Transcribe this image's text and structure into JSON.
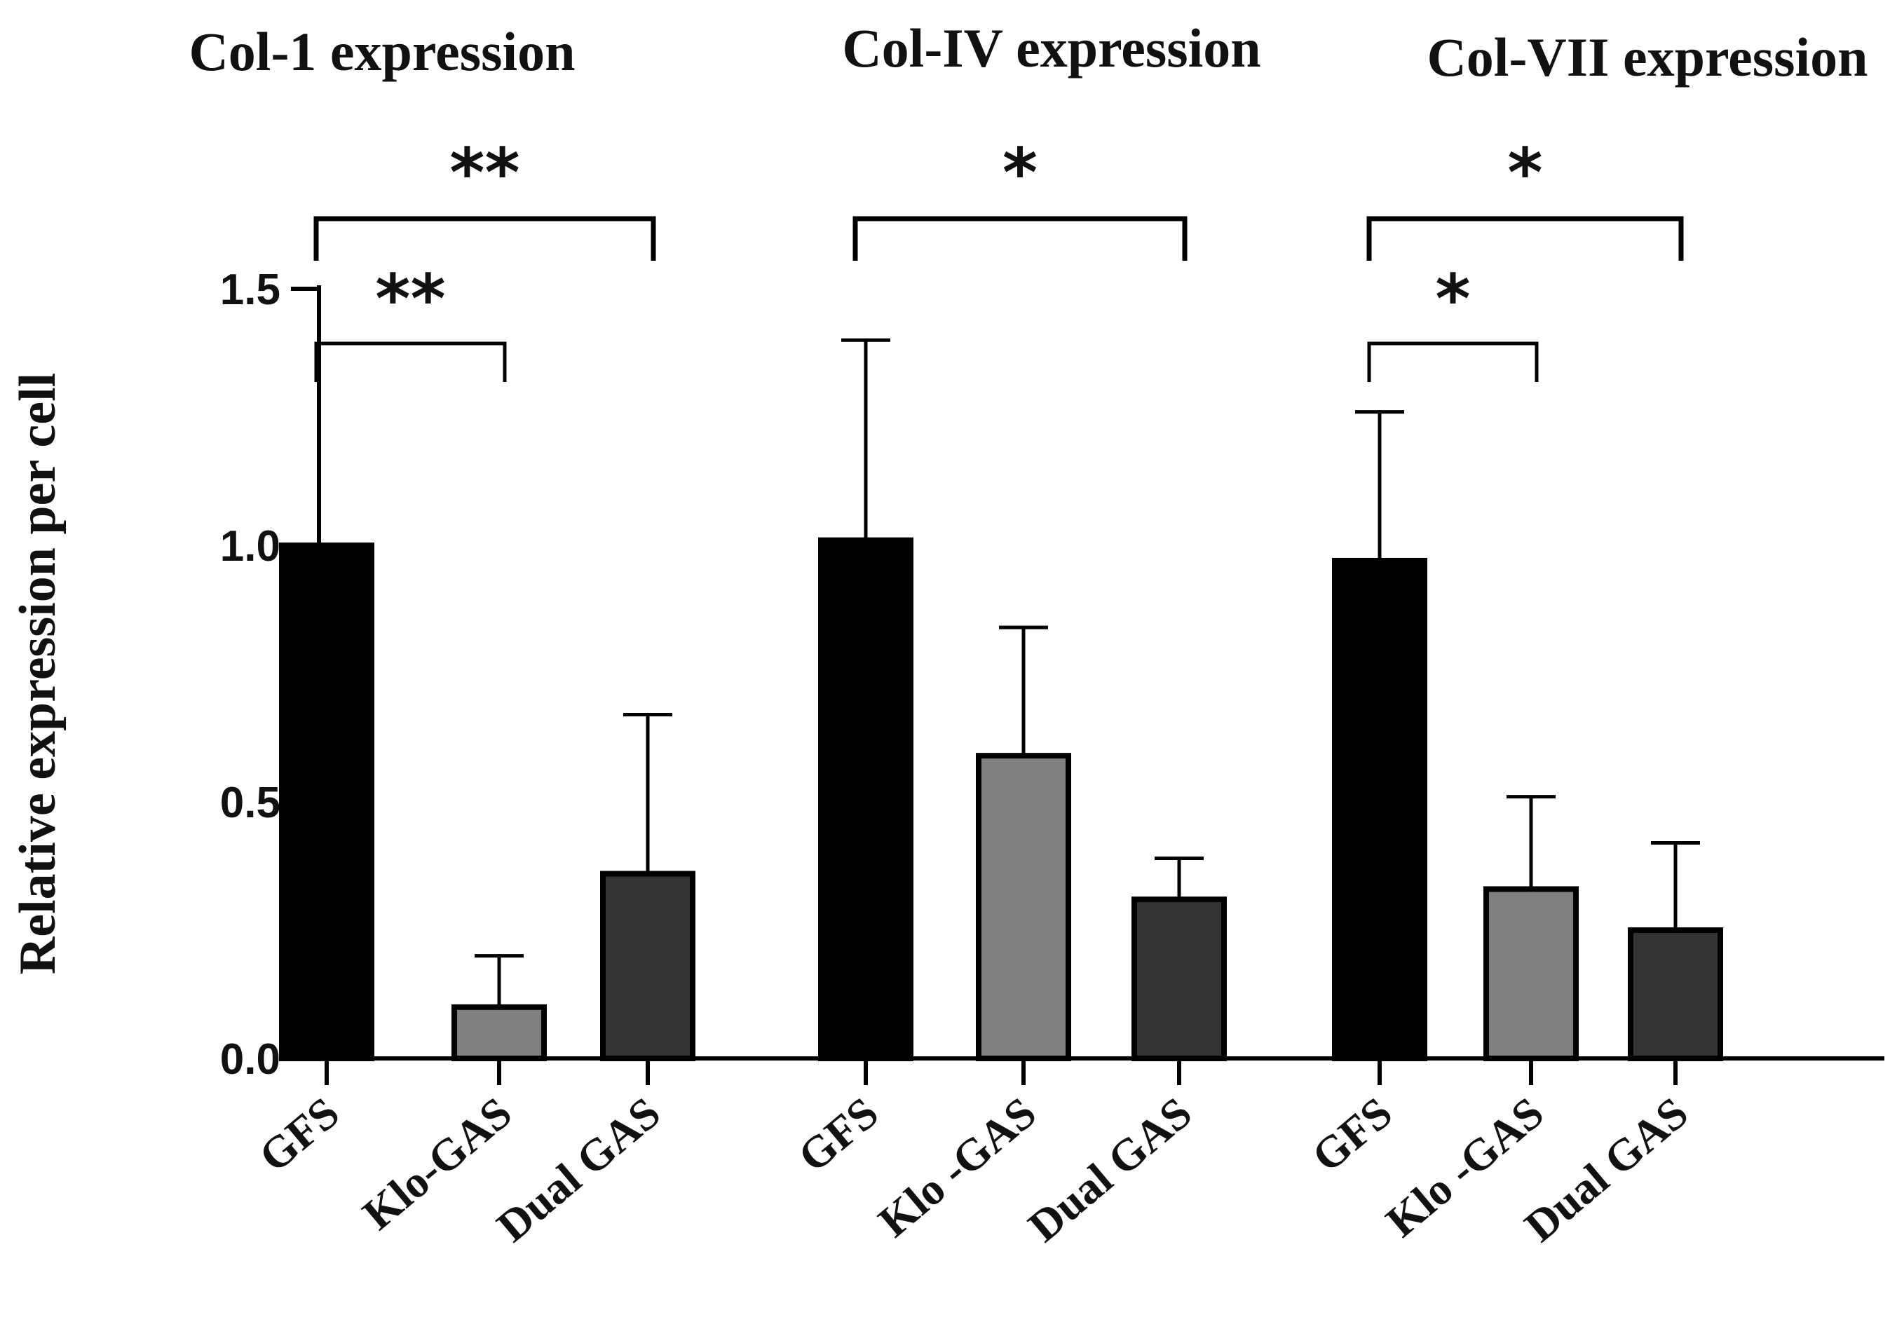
{
  "chart_data": {
    "type": "bar",
    "ylabel": "Relative expression per cell",
    "ylim": [
      0,
      1.5
    ],
    "yticks": [
      "0.0",
      "0.5",
      "1.0",
      "1.5"
    ],
    "error_bars": "upper standard deviation",
    "series_colors": {
      "GFS": "#000000",
      "Klo-GAS": "#7f7f7f",
      "Dual GAS": "#333333"
    },
    "panels": [
      {
        "title": "Col-1 expression",
        "categories": [
          "GFS",
          "Klo-GAS",
          "Dual GAS"
        ],
        "values": [
          1.0,
          0.1,
          0.36
        ],
        "errors": [
          0.0,
          0.1,
          0.31
        ],
        "significance": [
          {
            "from": "GFS",
            "to": "Dual GAS",
            "label": "**"
          },
          {
            "from": "GFS",
            "to": "Klo-GAS",
            "label": "**"
          }
        ]
      },
      {
        "title": "Col-IV expression",
        "categories": [
          "GFS",
          "Klo -GAS",
          "Dual GAS"
        ],
        "values": [
          1.01,
          0.59,
          0.31
        ],
        "errors": [
          0.39,
          0.25,
          0.08
        ],
        "significance": [
          {
            "from": "GFS",
            "to": "Dual GAS",
            "label": "*"
          }
        ]
      },
      {
        "title": "Col-VII expression",
        "categories": [
          "GFS",
          "Klo -GAS",
          "Dual GAS"
        ],
        "values": [
          0.97,
          0.33,
          0.25
        ],
        "errors": [
          0.29,
          0.18,
          0.17
        ],
        "significance": [
          {
            "from": "GFS",
            "to": "Dual GAS",
            "label": "*"
          },
          {
            "from": "GFS",
            "to": "Klo -GAS",
            "label": "*"
          }
        ]
      }
    ]
  }
}
